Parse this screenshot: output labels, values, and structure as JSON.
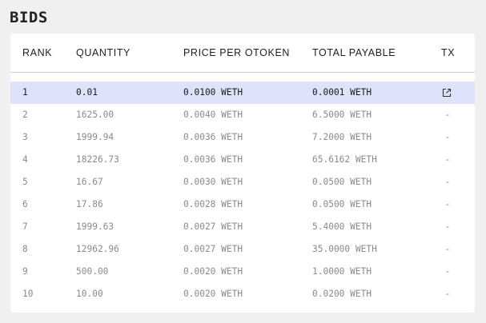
{
  "page": {
    "title": "BIDS"
  },
  "table": {
    "headers": {
      "rank": "RANK",
      "quantity": "QUANTITY",
      "price": "PRICE PER OTOKEN",
      "total": "TOTAL PAYABLE",
      "tx": "TX"
    },
    "rows": [
      {
        "rank": "1",
        "quantity": "0.01",
        "price": "0.0100 WETH",
        "total": "0.0001 WETH",
        "tx": "",
        "tx_icon": "external-link-icon",
        "highlighted": true
      },
      {
        "rank": "2",
        "quantity": "1625.00",
        "price": "0.0040 WETH",
        "total": "6.5000 WETH",
        "tx": "-"
      },
      {
        "rank": "3",
        "quantity": "1999.94",
        "price": "0.0036 WETH",
        "total": "7.2000 WETH",
        "tx": "-"
      },
      {
        "rank": "4",
        "quantity": "18226.73",
        "price": "0.0036 WETH",
        "total": "65.6162 WETH",
        "tx": "-"
      },
      {
        "rank": "5",
        "quantity": "16.67",
        "price": "0.0030 WETH",
        "total": "0.0500 WETH",
        "tx": "-"
      },
      {
        "rank": "6",
        "quantity": "17.86",
        "price": "0.0028 WETH",
        "total": "0.0500 WETH",
        "tx": "-"
      },
      {
        "rank": "7",
        "quantity": "1999.63",
        "price": "0.0027 WETH",
        "total": "5.4000 WETH",
        "tx": "-"
      },
      {
        "rank": "8",
        "quantity": "12962.96",
        "price": "0.0027 WETH",
        "total": "35.0000 WETH",
        "tx": "-"
      },
      {
        "rank": "9",
        "quantity": "500.00",
        "price": "0.0020 WETH",
        "total": "1.0000 WETH",
        "tx": "-"
      },
      {
        "rank": "10",
        "quantity": "10.00",
        "price": "0.0020 WETH",
        "total": "0.0200 WETH",
        "tx": "-"
      }
    ]
  },
  "colors": {
    "highlight_row": "#dfe2fb",
    "muted_text": "#8a8a8a",
    "background": "#f0f0f0"
  }
}
